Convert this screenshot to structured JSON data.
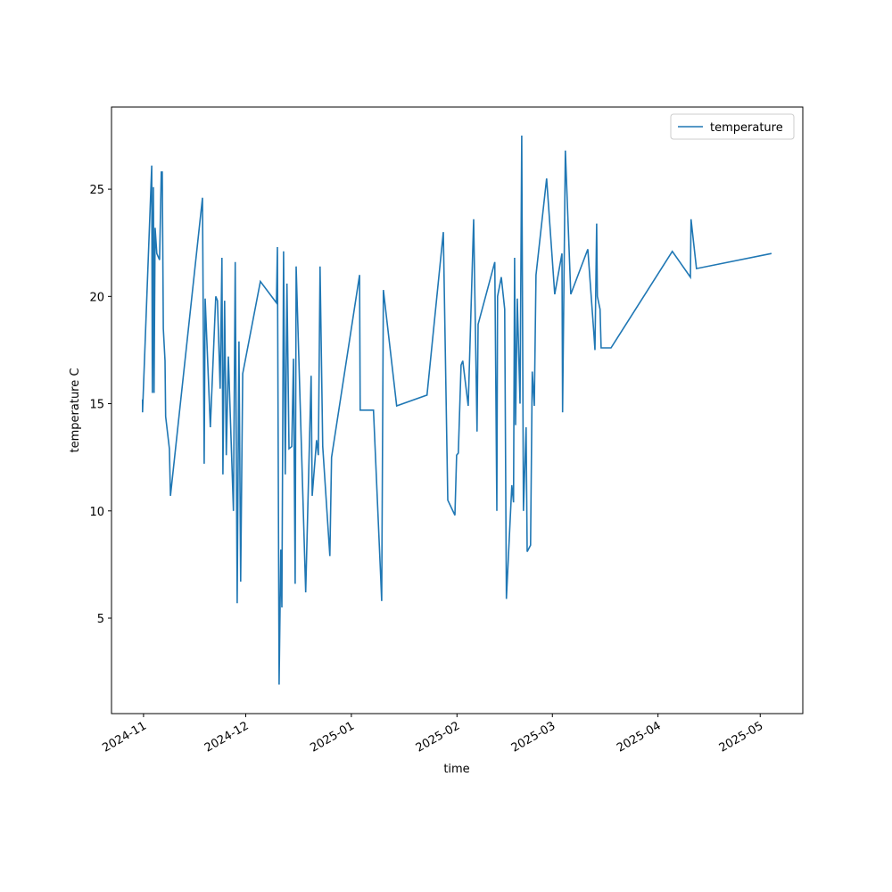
{
  "chart_data": {
    "type": "line",
    "xlabel": "time",
    "ylabel": "temperature C",
    "legend": "upper right",
    "grid": false,
    "xlim": [
      -9.4,
      193.5
    ],
    "ylim": [
      0.55,
      28.83
    ],
    "xticks": [
      {
        "value": 0,
        "label": "2024-11"
      },
      {
        "value": 30,
        "label": "2024-12"
      },
      {
        "value": 61,
        "label": "2025-01"
      },
      {
        "value": 92,
        "label": "2025-02"
      },
      {
        "value": 120,
        "label": "2025-03"
      },
      {
        "value": 151,
        "label": "2025-04"
      },
      {
        "value": 181,
        "label": "2025-05"
      }
    ],
    "yticks": [
      5,
      10,
      15,
      20,
      25
    ],
    "x": [
      -0.3,
      -0.3,
      2.4,
      2.6,
      2.9,
      3.1,
      3.4,
      3.9,
      4.7,
      5.2,
      5.5,
      5.8,
      6.3,
      6.5,
      7.6,
      7.9,
      17.3,
      17.8,
      18.1,
      19.6,
      21.2,
      21.7,
      22.5,
      23.0,
      23.3,
      23.8,
      24.3,
      24.9,
      26.4,
      26.9,
      27.5,
      28.0,
      28.5,
      29.1,
      34.3,
      39.0,
      39.3,
      39.8,
      40.3,
      40.6,
      41.1,
      41.6,
      42.1,
      42.7,
      43.5,
      44.0,
      44.5,
      44.8,
      47.6,
      49.2,
      49.5,
      50.8,
      51.3,
      51.8,
      52.6,
      54.7,
      55.2,
      63.4,
      63.6,
      67.5,
      69.6,
      69.9,
      70.4,
      74.3,
      83.2,
      88.0,
      89.3,
      91.4,
      91.9,
      92.4,
      93.2,
      93.7,
      95.3,
      96.9,
      97.9,
      98.2,
      103.1,
      103.7,
      103.9,
      105.0,
      106.0,
      106.5,
      108.1,
      108.6,
      108.9,
      109.2,
      109.7,
      110.5,
      111.0,
      111.5,
      112.3,
      112.6,
      113.6,
      114.1,
      114.7,
      115.2,
      118.3,
      120.7,
      122.8,
      123.0,
      123.8,
      125.4,
      130.4,
      132.2,
      132.5,
      133.0,
      133.2,
      134.0,
      134.3,
      137.2,
      155.2,
      160.5,
      160.7,
      162.3,
      184.3
    ],
    "series": [
      {
        "name": "temperature",
        "color": "#1f77b4",
        "values": [
          15.2,
          14.6,
          26.1,
          15.5,
          25.1,
          15.5,
          23.2,
          22.0,
          21.7,
          25.8,
          25.8,
          18.5,
          17.0,
          14.4,
          12.9,
          10.7,
          24.6,
          12.2,
          19.9,
          13.9,
          20.0,
          19.8,
          15.7,
          21.8,
          11.7,
          19.8,
          12.6,
          17.2,
          10.0,
          21.6,
          5.7,
          17.9,
          6.7,
          16.4,
          20.7,
          19.7,
          22.3,
          1.9,
          8.2,
          5.5,
          22.1,
          11.7,
          20.6,
          12.9,
          13.0,
          17.1,
          6.6,
          21.4,
          6.2,
          16.3,
          10.7,
          13.3,
          12.6,
          21.4,
          13.0,
          7.9,
          12.5,
          21.0,
          14.7,
          14.7,
          7.0,
          5.8,
          20.3,
          14.9,
          15.4,
          23.0,
          10.5,
          9.8,
          12.6,
          12.7,
          16.8,
          17.0,
          14.9,
          23.6,
          13.7,
          18.7,
          21.6,
          10.0,
          20.0,
          20.9,
          19.4,
          5.9,
          11.2,
          10.4,
          21.8,
          14.0,
          19.9,
          15.0,
          27.5,
          10.0,
          13.9,
          8.1,
          8.4,
          16.5,
          14.9,
          21.0,
          25.5,
          20.1,
          22.0,
          14.6,
          26.8,
          20.1,
          22.2,
          18.2,
          17.5,
          23.4,
          20.0,
          19.4,
          17.6,
          17.6,
          22.1,
          20.9,
          23.6,
          21.3,
          22.0
        ]
      }
    ]
  }
}
